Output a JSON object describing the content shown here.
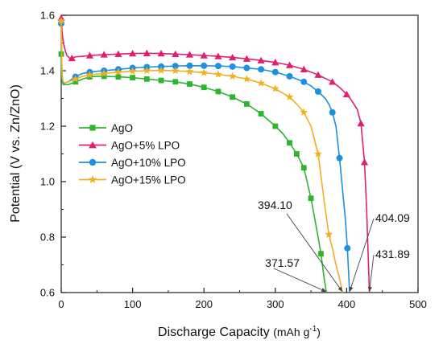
{
  "chart_data": {
    "type": "line",
    "title": "",
    "xlabel": "Discharge Capacity",
    "xunit": "(mAh g",
    "xunit_sup": "-1",
    "xunit_close": ")",
    "ylabel": "Potential (V vs. Zn/ZnO)",
    "xlim": [
      0,
      500
    ],
    "ylim": [
      0.6,
      1.6
    ],
    "xticks": [
      "0",
      "100",
      "200",
      "300",
      "400",
      "500"
    ],
    "yticks": [
      "0.6",
      "0.8",
      "1.0",
      "1.2",
      "1.4",
      "1.6"
    ],
    "legend_position": "center-left",
    "series": [
      {
        "name": "AgO",
        "color": "#2db52d",
        "marker": "square",
        "x": [
          0,
          1,
          2,
          3,
          5,
          10,
          15,
          20,
          25,
          30,
          40,
          50,
          60,
          80,
          100,
          120,
          140,
          160,
          180,
          200,
          220,
          240,
          260,
          280,
          300,
          310,
          320,
          330,
          340,
          350,
          355,
          360,
          364,
          368,
          371.57
        ],
        "y": [
          1.46,
          1.37,
          1.355,
          1.35,
          1.35,
          1.35,
          1.355,
          1.36,
          1.365,
          1.37,
          1.378,
          1.38,
          1.38,
          1.378,
          1.375,
          1.37,
          1.365,
          1.36,
          1.352,
          1.34,
          1.325,
          1.305,
          1.28,
          1.245,
          1.2,
          1.175,
          1.14,
          1.1,
          1.05,
          0.94,
          0.87,
          0.8,
          0.74,
          0.66,
          0.6
        ]
      },
      {
        "name": "AgO+5% LPO",
        "color": "#e0206e",
        "marker": "triangle",
        "x": [
          0,
          1,
          2,
          4,
          6,
          8,
          12,
          15,
          20,
          30,
          40,
          60,
          80,
          100,
          120,
          140,
          160,
          180,
          200,
          220,
          240,
          260,
          280,
          300,
          320,
          340,
          360,
          380,
          390,
          400,
          405,
          410,
          415,
          420,
          425,
          428,
          431.89
        ],
        "y": [
          1.59,
          1.55,
          1.52,
          1.49,
          1.47,
          1.455,
          1.445,
          1.445,
          1.45,
          1.452,
          1.455,
          1.458,
          1.46,
          1.462,
          1.463,
          1.462,
          1.46,
          1.458,
          1.455,
          1.452,
          1.448,
          1.443,
          1.437,
          1.43,
          1.42,
          1.405,
          1.385,
          1.36,
          1.34,
          1.315,
          1.3,
          1.28,
          1.26,
          1.21,
          1.07,
          0.9,
          0.6
        ]
      },
      {
        "name": "AgO+10% LPO",
        "color": "#1e90e0",
        "marker": "circle",
        "x": [
          0,
          1,
          2,
          3,
          5,
          10,
          15,
          20,
          25,
          30,
          40,
          50,
          60,
          80,
          100,
          120,
          140,
          160,
          180,
          200,
          220,
          240,
          260,
          280,
          300,
          320,
          340,
          350,
          360,
          370,
          375,
          380,
          385,
          390,
          395,
          398,
          401,
          404.09
        ],
        "y": [
          1.57,
          1.4,
          1.36,
          1.355,
          1.355,
          1.36,
          1.37,
          1.378,
          1.385,
          1.39,
          1.395,
          1.398,
          1.4,
          1.405,
          1.41,
          1.413,
          1.415,
          1.417,
          1.418,
          1.418,
          1.417,
          1.415,
          1.41,
          1.405,
          1.395,
          1.38,
          1.36,
          1.345,
          1.325,
          1.3,
          1.28,
          1.25,
          1.2,
          1.085,
          0.95,
          0.87,
          0.76,
          0.6
        ]
      },
      {
        "name": "AgO+15% LPO",
        "color": "#f0b020",
        "marker": "star",
        "x": [
          0,
          1,
          2,
          3,
          5,
          10,
          15,
          20,
          25,
          30,
          40,
          50,
          60,
          80,
          100,
          120,
          140,
          160,
          180,
          200,
          220,
          240,
          260,
          280,
          300,
          320,
          330,
          340,
          350,
          360,
          365,
          370,
          375,
          380,
          385,
          390,
          394.1
        ],
        "y": [
          1.58,
          1.41,
          1.37,
          1.36,
          1.355,
          1.36,
          1.365,
          1.37,
          1.375,
          1.38,
          1.385,
          1.388,
          1.39,
          1.395,
          1.398,
          1.4,
          1.401,
          1.4,
          1.397,
          1.393,
          1.387,
          1.38,
          1.37,
          1.355,
          1.335,
          1.305,
          1.28,
          1.25,
          1.2,
          1.1,
          1.0,
          0.9,
          0.81,
          0.76,
          0.7,
          0.65,
          0.6
        ]
      }
    ],
    "marker_x": {
      "AgO": [
        0,
        20,
        40,
        60,
        80,
        100,
        120,
        140,
        160,
        180,
        200,
        220,
        240,
        260,
        280,
        300,
        320,
        330,
        340,
        350,
        364
      ],
      "AgO+5% LPO": [
        0,
        15,
        40,
        60,
        80,
        100,
        120,
        140,
        160,
        180,
        200,
        220,
        240,
        260,
        280,
        300,
        320,
        340,
        360,
        380,
        400,
        420,
        425
      ],
      "AgO+10% LPO": [
        0,
        20,
        40,
        60,
        80,
        100,
        120,
        140,
        160,
        180,
        200,
        220,
        240,
        260,
        280,
        300,
        320,
        340,
        360,
        380,
        390,
        401
      ],
      "AgO+15% LPO": [
        0,
        20,
        40,
        60,
        80,
        100,
        120,
        140,
        160,
        180,
        200,
        220,
        240,
        260,
        280,
        300,
        320,
        340,
        360,
        375
      ]
    },
    "annotations": [
      {
        "label": "394.10",
        "x": 394.1,
        "y": 0.6
      },
      {
        "label": "404.09",
        "x": 404.09,
        "y": 0.6
      },
      {
        "label": "371.57",
        "x": 371.57,
        "y": 0.6
      },
      {
        "label": "431.89",
        "x": 431.89,
        "y": 0.6
      }
    ]
  }
}
